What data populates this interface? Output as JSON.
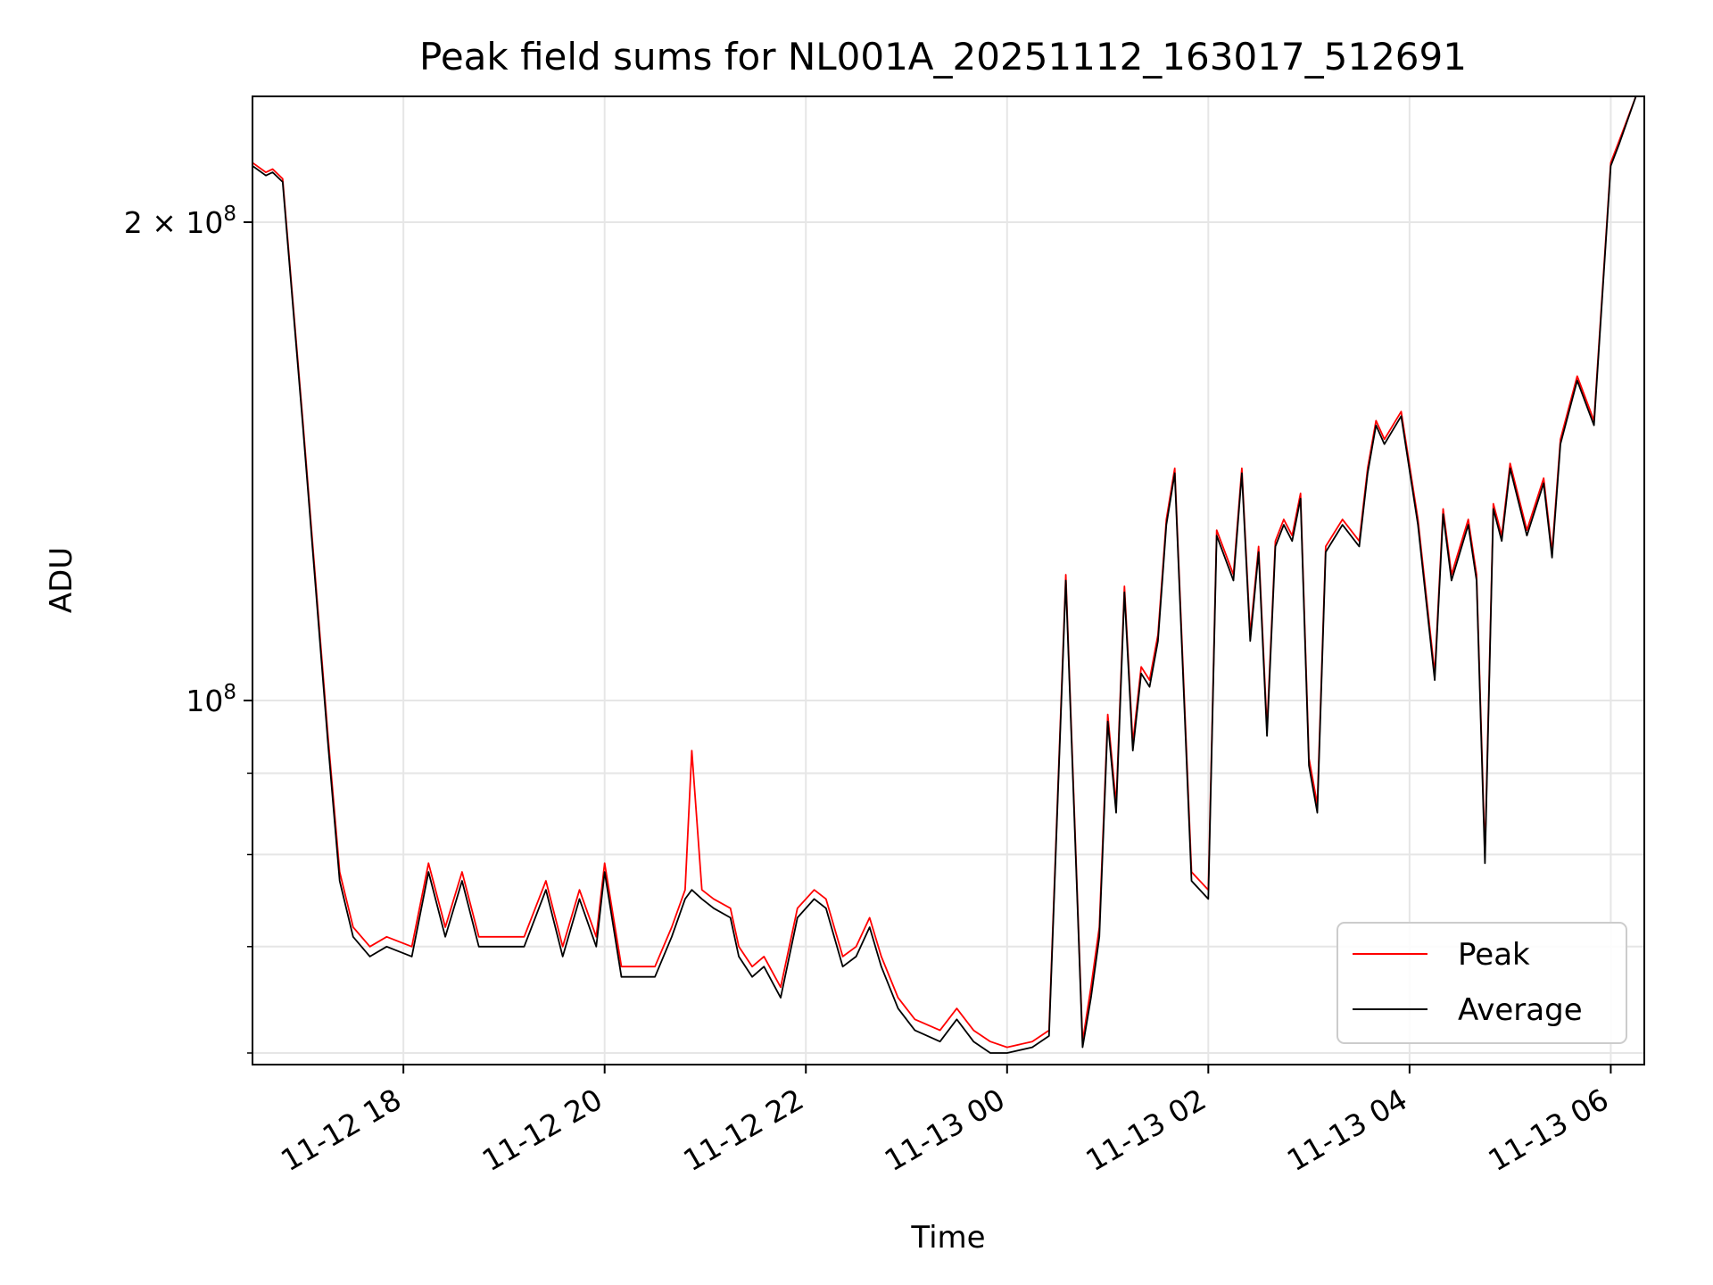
{
  "chart_data": {
    "type": "line",
    "title": "Peak field sums for NL001A_20251112_163017_512691",
    "xlabel": "Time",
    "ylabel": "ADU",
    "yscale": "log",
    "xlim": [
      "2025-11-12 16:30",
      "2025-11-13 06:20"
    ],
    "ylim": [
      59000000,
      240000000
    ],
    "x_ticks": [
      "2025-11-12 18:00",
      "2025-11-12 20:00",
      "2025-11-12 22:00",
      "2025-11-13 00:00",
      "2025-11-13 02:00",
      "2025-11-13 04:00",
      "2025-11-13 06:00"
    ],
    "x_tick_labels": [
      "11-12 18",
      "11-12 20",
      "11-12 22",
      "11-13 00",
      "11-13 02",
      "11-13 04",
      "11-13 06"
    ],
    "y_ticks": [
      100000000,
      200000000
    ],
    "y_tick_labels": [
      {
        "base": "10",
        "exp": "8"
      },
      {
        "mant": "2 × 10",
        "exp": "8"
      }
    ],
    "y_minor_ticks": [
      60000000,
      70000000,
      80000000,
      90000000
    ],
    "grid": true,
    "legend_position": "lower-right",
    "series": [
      {
        "name": "Peak",
        "color": "#ff0000",
        "x": [
          "2025-11-12 16:30",
          "2025-11-12 16:38",
          "2025-11-12 16:42",
          "2025-11-12 16:48",
          "2025-11-12 17:00",
          "2025-11-12 17:15",
          "2025-11-12 17:22",
          "2025-11-12 17:30",
          "2025-11-12 17:40",
          "2025-11-12 17:50",
          "2025-11-12 18:05",
          "2025-11-12 18:15",
          "2025-11-12 18:25",
          "2025-11-12 18:35",
          "2025-11-12 18:45",
          "2025-11-12 18:55",
          "2025-11-12 19:00",
          "2025-11-12 19:12",
          "2025-11-12 19:25",
          "2025-11-12 19:35",
          "2025-11-12 19:45",
          "2025-11-12 19:55",
          "2025-11-12 20:00",
          "2025-11-12 20:10",
          "2025-11-12 20:30",
          "2025-11-12 20:40",
          "2025-11-12 20:48",
          "2025-11-12 20:52",
          "2025-11-12 20:58",
          "2025-11-12 21:05",
          "2025-11-12 21:15",
          "2025-11-12 21:20",
          "2025-11-12 21:28",
          "2025-11-12 21:35",
          "2025-11-12 21:45",
          "2025-11-12 21:55",
          "2025-11-12 22:05",
          "2025-11-12 22:12",
          "2025-11-12 22:22",
          "2025-11-12 22:30",
          "2025-11-12 22:38",
          "2025-11-12 22:45",
          "2025-11-12 22:55",
          "2025-11-12 23:05",
          "2025-11-12 23:20",
          "2025-11-12 23:30",
          "2025-11-12 23:40",
          "2025-11-12 23:50",
          "2025-11-13 00:00",
          "2025-11-13 00:15",
          "2025-11-13 00:25",
          "2025-11-13 00:35",
          "2025-11-13 00:45",
          "2025-11-13 00:50",
          "2025-11-13 00:55",
          "2025-11-13 01:00",
          "2025-11-13 01:05",
          "2025-11-13 01:10",
          "2025-11-13 01:15",
          "2025-11-13 01:20",
          "2025-11-13 01:25",
          "2025-11-13 01:30",
          "2025-11-13 01:35",
          "2025-11-13 01:40",
          "2025-11-13 01:50",
          "2025-11-13 02:00",
          "2025-11-13 02:05",
          "2025-11-13 02:15",
          "2025-11-13 02:20",
          "2025-11-13 02:25",
          "2025-11-13 02:30",
          "2025-11-13 02:35",
          "2025-11-13 02:40",
          "2025-11-13 02:45",
          "2025-11-13 02:50",
          "2025-11-13 02:55",
          "2025-11-13 03:00",
          "2025-11-13 03:05",
          "2025-11-13 03:10",
          "2025-11-13 03:20",
          "2025-11-13 03:30",
          "2025-11-13 03:35",
          "2025-11-13 03:40",
          "2025-11-13 03:45",
          "2025-11-13 03:55",
          "2025-11-13 04:05",
          "2025-11-13 04:15",
          "2025-11-13 04:20",
          "2025-11-13 04:25",
          "2025-11-13 04:35",
          "2025-11-13 04:40",
          "2025-11-13 04:45",
          "2025-11-13 04:50",
          "2025-11-13 04:55",
          "2025-11-13 05:00",
          "2025-11-13 05:10",
          "2025-11-13 05:20",
          "2025-11-13 05:25",
          "2025-11-13 05:30",
          "2025-11-13 05:40",
          "2025-11-13 05:50",
          "2025-11-13 06:00",
          "2025-11-13 06:05",
          "2025-11-13 06:15"
        ],
        "y": [
          218000000,
          215000000,
          216000000,
          213000000,
          150000000,
          95000000,
          78000000,
          72000000,
          70000000,
          71000000,
          70000000,
          79000000,
          72000000,
          78000000,
          71000000,
          71000000,
          71000000,
          71000000,
          77000000,
          70000000,
          76000000,
          71000000,
          79000000,
          68000000,
          68000000,
          72000000,
          76000000,
          93000000,
          76000000,
          75000000,
          74000000,
          70000000,
          68000000,
          69000000,
          66000000,
          74000000,
          76000000,
          75000000,
          69000000,
          70000000,
          73000000,
          69000000,
          65000000,
          63000000,
          62000000,
          64000000,
          62000000,
          61000000,
          60500000,
          61000000,
          62000000,
          120000000,
          61000000,
          66000000,
          72000000,
          98000000,
          86000000,
          118000000,
          94000000,
          105000000,
          103000000,
          110000000,
          130000000,
          140000000,
          78000000,
          76000000,
          128000000,
          120000000,
          140000000,
          110000000,
          125000000,
          96000000,
          126000000,
          130000000,
          127000000,
          135000000,
          92000000,
          86000000,
          125000000,
          130000000,
          126000000,
          140000000,
          150000000,
          146000000,
          152000000,
          130000000,
          104000000,
          132000000,
          120000000,
          130000000,
          120000000,
          80000000,
          133000000,
          127000000,
          141000000,
          128000000,
          138000000,
          124000000,
          146000000,
          160000000,
          150000000,
          218000000,
          225000000,
          240000000
        ]
      },
      {
        "name": "Average",
        "color": "#000000",
        "x": [
          "2025-11-12 16:30",
          "2025-11-12 16:38",
          "2025-11-12 16:42",
          "2025-11-12 16:48",
          "2025-11-12 17:00",
          "2025-11-12 17:15",
          "2025-11-12 17:22",
          "2025-11-12 17:30",
          "2025-11-12 17:40",
          "2025-11-12 17:50",
          "2025-11-12 18:05",
          "2025-11-12 18:15",
          "2025-11-12 18:25",
          "2025-11-12 18:35",
          "2025-11-12 18:45",
          "2025-11-12 18:55",
          "2025-11-12 19:00",
          "2025-11-12 19:12",
          "2025-11-12 19:25",
          "2025-11-12 19:35",
          "2025-11-12 19:45",
          "2025-11-12 19:55",
          "2025-11-12 20:00",
          "2025-11-12 20:10",
          "2025-11-12 20:30",
          "2025-11-12 20:40",
          "2025-11-12 20:48",
          "2025-11-12 20:52",
          "2025-11-12 20:58",
          "2025-11-12 21:05",
          "2025-11-12 21:15",
          "2025-11-12 21:20",
          "2025-11-12 21:28",
          "2025-11-12 21:35",
          "2025-11-12 21:45",
          "2025-11-12 21:55",
          "2025-11-12 22:05",
          "2025-11-12 22:12",
          "2025-11-12 22:22",
          "2025-11-12 22:30",
          "2025-11-12 22:38",
          "2025-11-12 22:45",
          "2025-11-12 22:55",
          "2025-11-12 23:05",
          "2025-11-12 23:20",
          "2025-11-12 23:30",
          "2025-11-12 23:40",
          "2025-11-12 23:50",
          "2025-11-13 00:00",
          "2025-11-13 00:15",
          "2025-11-13 00:25",
          "2025-11-13 00:35",
          "2025-11-13 00:45",
          "2025-11-13 00:50",
          "2025-11-13 00:55",
          "2025-11-13 01:00",
          "2025-11-13 01:05",
          "2025-11-13 01:10",
          "2025-11-13 01:15",
          "2025-11-13 01:20",
          "2025-11-13 01:25",
          "2025-11-13 01:30",
          "2025-11-13 01:35",
          "2025-11-13 01:40",
          "2025-11-13 01:50",
          "2025-11-13 02:00",
          "2025-11-13 02:05",
          "2025-11-13 02:15",
          "2025-11-13 02:20",
          "2025-11-13 02:25",
          "2025-11-13 02:30",
          "2025-11-13 02:35",
          "2025-11-13 02:40",
          "2025-11-13 02:45",
          "2025-11-13 02:50",
          "2025-11-13 02:55",
          "2025-11-13 03:00",
          "2025-11-13 03:05",
          "2025-11-13 03:10",
          "2025-11-13 03:20",
          "2025-11-13 03:30",
          "2025-11-13 03:35",
          "2025-11-13 03:40",
          "2025-11-13 03:45",
          "2025-11-13 03:55",
          "2025-11-13 04:05",
          "2025-11-13 04:15",
          "2025-11-13 04:20",
          "2025-11-13 04:25",
          "2025-11-13 04:35",
          "2025-11-13 04:40",
          "2025-11-13 04:45",
          "2025-11-13 04:50",
          "2025-11-13 04:55",
          "2025-11-13 05:00",
          "2025-11-13 05:10",
          "2025-11-13 05:20",
          "2025-11-13 05:25",
          "2025-11-13 05:30",
          "2025-11-13 05:40",
          "2025-11-13 05:50",
          "2025-11-13 06:00",
          "2025-11-13 06:05",
          "2025-11-13 06:15"
        ],
        "y": [
          217000000,
          214000000,
          215000000,
          212000000,
          149000000,
          94000000,
          77000000,
          71000000,
          69000000,
          70000000,
          69000000,
          78000000,
          71000000,
          77000000,
          70000000,
          70000000,
          70000000,
          70000000,
          76000000,
          69000000,
          75000000,
          70000000,
          78000000,
          67000000,
          67000000,
          71000000,
          75000000,
          76000000,
          75000000,
          74000000,
          73000000,
          69000000,
          67000000,
          68000000,
          65000000,
          73000000,
          75000000,
          74000000,
          68000000,
          69000000,
          72000000,
          68000000,
          64000000,
          62000000,
          61000000,
          63000000,
          61000000,
          60000000,
          60000000,
          60500000,
          61500000,
          119000000,
          60500000,
          65000000,
          71000000,
          97000000,
          85000000,
          117000000,
          93000000,
          104000000,
          102000000,
          109000000,
          129000000,
          139000000,
          77000000,
          75000000,
          127000000,
          119000000,
          139000000,
          109000000,
          124000000,
          95000000,
          125000000,
          129000000,
          126000000,
          134000000,
          91000000,
          85000000,
          124000000,
          129000000,
          125000000,
          139000000,
          149000000,
          145000000,
          151000000,
          129000000,
          103000000,
          131000000,
          119000000,
          129000000,
          119000000,
          79000000,
          132000000,
          126000000,
          140000000,
          127000000,
          137000000,
          123000000,
          145000000,
          159000000,
          149000000,
          217000000,
          224000000,
          240000000
        ]
      }
    ]
  }
}
